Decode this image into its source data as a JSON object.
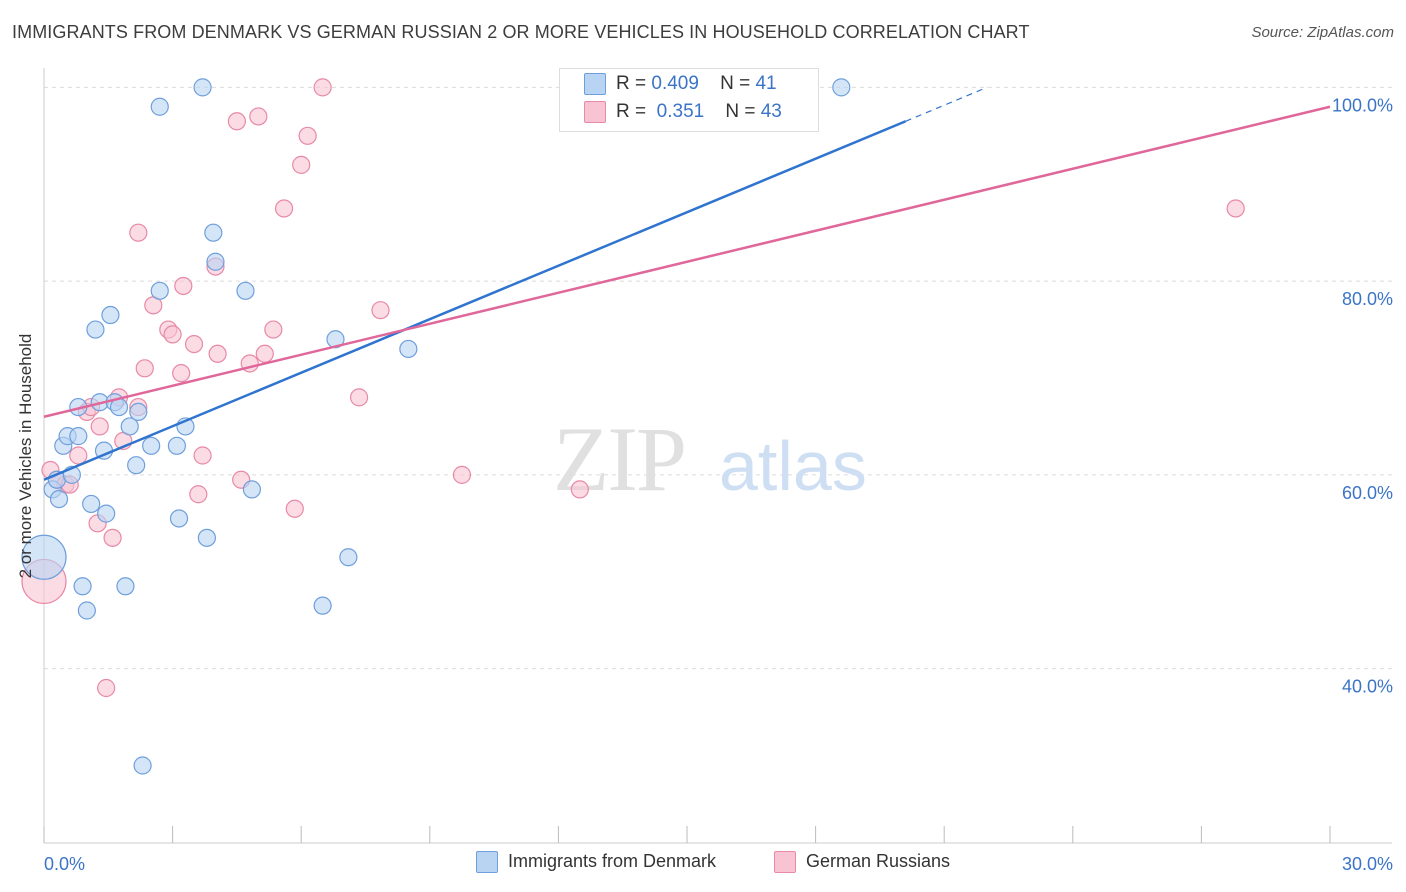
{
  "title": "IMMIGRANTS FROM DENMARK VS GERMAN RUSSIAN 2 OR MORE VEHICLES IN HOUSEHOLD CORRELATION CHART",
  "source": "Source: ZipAtlas.com",
  "watermark": {
    "zip": "ZIP",
    "atlas": "atlas"
  },
  "legend": {
    "rows": [
      {
        "r_label": "R =",
        "r_value": "0.409",
        "n_label": "N =",
        "n_value": "41"
      },
      {
        "r_label": "R =",
        "r_value": "0.351",
        "n_label": "N =",
        "n_value": "43"
      }
    ],
    "bottom": [
      "Immigrants from Denmark",
      "German Russians"
    ]
  },
  "colors": {
    "blue_fill": "#b9d3f3",
    "blue_stroke": "#6f9fdb",
    "blue_line": "#2f74cf",
    "pink_fill": "#f8c3d2",
    "pink_stroke": "#e889a7",
    "pink_line": "#e0679a",
    "axis_text": "#3b74c7",
    "grid": "#dcdcdc"
  },
  "chart_data": {
    "type": "scatter",
    "title": "IMMIGRANTS FROM DENMARK VS GERMAN RUSSIAN 2 OR MORE VEHICLES IN HOUSEHOLD CORRELATION CHART",
    "xlabel": "",
    "ylabel": "2 or more Vehicles in Household",
    "xlim": [
      0,
      30
    ],
    "ylim": [
      22,
      102
    ],
    "x_ticks": [
      0,
      3,
      6,
      9,
      12,
      15,
      18,
      21,
      24,
      27,
      30
    ],
    "x_tick_labels": {
      "left": "0.0%",
      "right": "30.0%"
    },
    "y_ticks": [
      {
        "value": 40,
        "label": "40.0%"
      },
      {
        "value": 60,
        "label": "60.0%"
      },
      {
        "value": 80,
        "label": "80.0%"
      },
      {
        "value": 100,
        "label": "100.0%"
      }
    ],
    "series": [
      {
        "name": "Immigrants from Denmark",
        "color": "blue",
        "points": [
          [
            0.0,
            51.5,
            "large"
          ],
          [
            0.2,
            58.5
          ],
          [
            0.35,
            57.5
          ],
          [
            0.3,
            59.5
          ],
          [
            0.45,
            63
          ],
          [
            0.55,
            64
          ],
          [
            0.65,
            60
          ],
          [
            0.8,
            64
          ],
          [
            0.8,
            67
          ],
          [
            0.9,
            48.5
          ],
          [
            1.0,
            46
          ],
          [
            1.1,
            57
          ],
          [
            1.2,
            75
          ],
          [
            1.3,
            67.5
          ],
          [
            1.4,
            62.5
          ],
          [
            1.45,
            56
          ],
          [
            1.55,
            76.5
          ],
          [
            1.65,
            67.5
          ],
          [
            1.75,
            67
          ],
          [
            1.9,
            48.5
          ],
          [
            2.0,
            65
          ],
          [
            2.15,
            61
          ],
          [
            2.2,
            66.5
          ],
          [
            2.5,
            63
          ],
          [
            2.7,
            98
          ],
          [
            2.7,
            79
          ],
          [
            3.1,
            63
          ],
          [
            3.15,
            55.5
          ],
          [
            3.3,
            65
          ],
          [
            3.7,
            100
          ],
          [
            3.8,
            53.5
          ],
          [
            3.95,
            85
          ],
          [
            4.0,
            82
          ],
          [
            4.7,
            79
          ],
          [
            4.85,
            58.5
          ],
          [
            6.5,
            46.5
          ],
          [
            6.8,
            74
          ],
          [
            7.1,
            51.5
          ],
          [
            8.5,
            73
          ],
          [
            2.3,
            30
          ],
          [
            18.6,
            100
          ]
        ]
      },
      {
        "name": "German Russians",
        "color": "pink",
        "points": [
          [
            0.0,
            49,
            "large"
          ],
          [
            0.15,
            60.5
          ],
          [
            0.3,
            59.5
          ],
          [
            0.5,
            59
          ],
          [
            0.6,
            59
          ],
          [
            0.8,
            62
          ],
          [
            1.0,
            66.5
          ],
          [
            1.25,
            55
          ],
          [
            1.3,
            65
          ],
          [
            1.45,
            38
          ],
          [
            1.6,
            53.5
          ],
          [
            1.75,
            68
          ],
          [
            1.85,
            63.5
          ],
          [
            2.2,
            67
          ],
          [
            2.2,
            85
          ],
          [
            2.35,
            71
          ],
          [
            2.55,
            77.5
          ],
          [
            2.9,
            75
          ],
          [
            3.0,
            74.5
          ],
          [
            3.2,
            70.5
          ],
          [
            3.25,
            79.5
          ],
          [
            3.5,
            73.5
          ],
          [
            3.6,
            58
          ],
          [
            3.7,
            62
          ],
          [
            4.0,
            81.5
          ],
          [
            4.05,
            72.5
          ],
          [
            4.5,
            96.5
          ],
          [
            4.6,
            59.5
          ],
          [
            4.8,
            71.5
          ],
          [
            5.0,
            97
          ],
          [
            5.15,
            72.5
          ],
          [
            5.35,
            75
          ],
          [
            5.6,
            87.5
          ],
          [
            5.85,
            56.5
          ],
          [
            6.0,
            92
          ],
          [
            6.15,
            95
          ],
          [
            6.5,
            100
          ],
          [
            7.35,
            68
          ],
          [
            7.85,
            77
          ],
          [
            9.75,
            60
          ],
          [
            12.5,
            58.5
          ],
          [
            27.8,
            87.5
          ],
          [
            1.1,
            67
          ]
        ]
      }
    ],
    "trendlines": [
      {
        "series": "Immigrants from Denmark",
        "x0": 0.0,
        "y0": 59.5,
        "x1": 20.1,
        "y1": 96.5,
        "dash_to_x": 22.0,
        "dash_to_y": 100.0
      },
      {
        "series": "German Russians",
        "x0": 0.0,
        "y0": 66.0,
        "x1": 30.0,
        "y1": 98.0
      }
    ]
  }
}
